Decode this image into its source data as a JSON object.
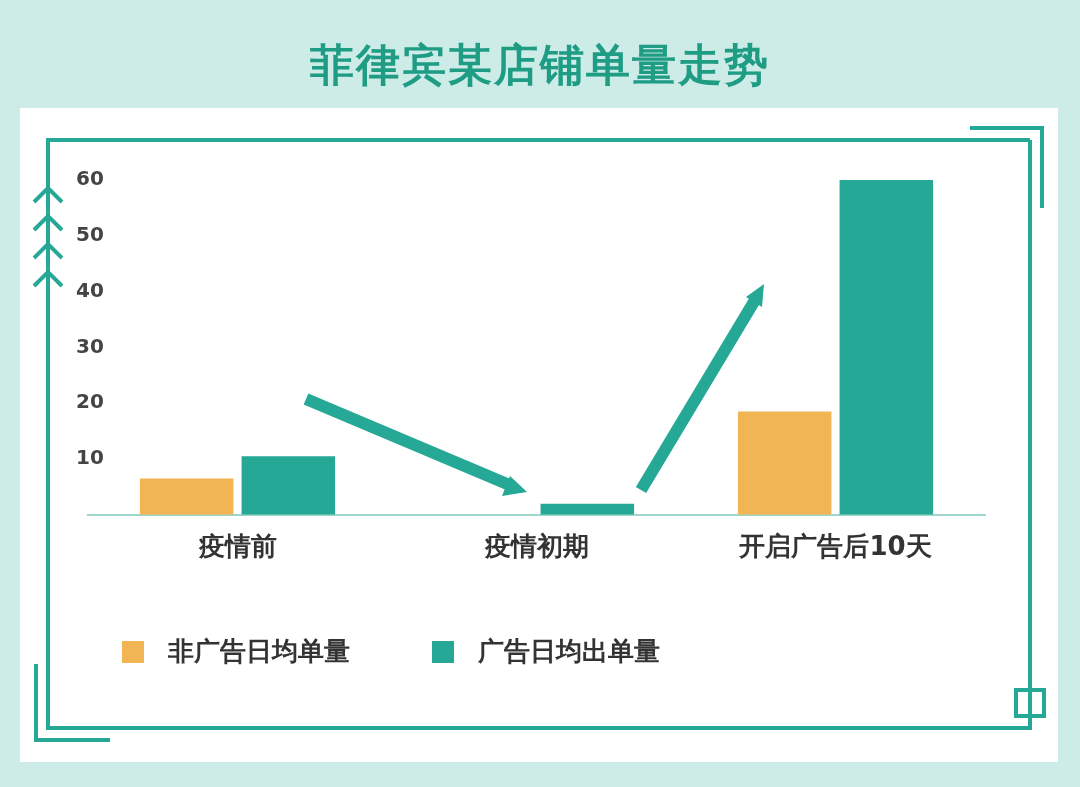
{
  "chart_data": {
    "type": "bar",
    "title": "菲律宾某店铺单量走势",
    "categories": [
      "疫情前",
      "疫情初期",
      "开启广告后10天"
    ],
    "series": [
      {
        "name": "非广告日均单量",
        "color": "#f2b553",
        "values": [
          6.5,
          null,
          18.5
        ]
      },
      {
        "name": "广告日均出单量",
        "color": "#25a996",
        "values": [
          10.5,
          2,
          60
        ]
      }
    ],
    "ylim": [
      0,
      60
    ],
    "yticks": [
      10,
      20,
      30,
      40,
      50,
      60
    ],
    "grid": false,
    "legend": "bottom left"
  }
}
